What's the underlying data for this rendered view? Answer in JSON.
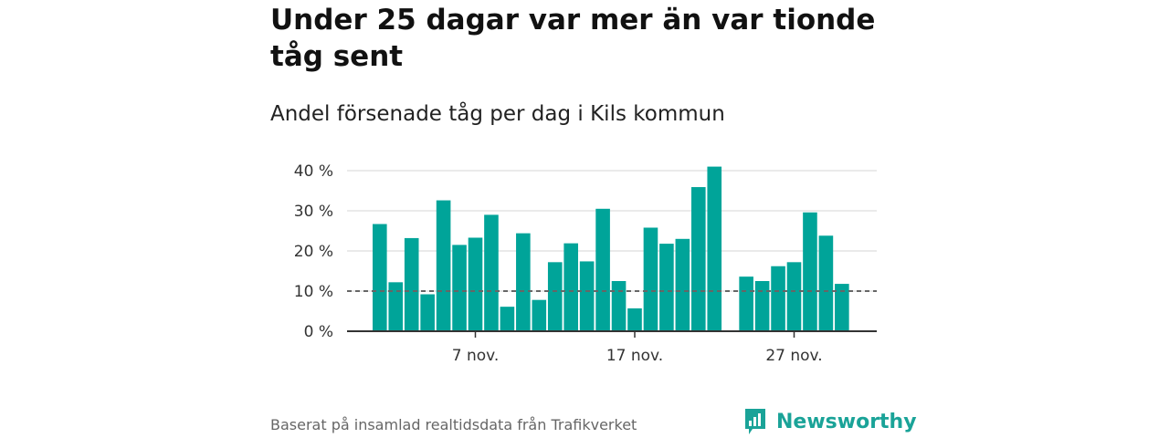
{
  "headline": "Under 25 dagar var mer än var tionde tåg sent",
  "subtitle": "Andel försenade tåg per dag i Kils kommun",
  "footer": {
    "source": "Baserat på insamlad realtidsdata från Trafikverket",
    "brand": "Newsworthy",
    "brand_icon": "newsworthy-logo-icon"
  },
  "colors": {
    "bar": "#00a499",
    "grid": "#dddddd",
    "axis": "#333333",
    "reference_line": "#666666",
    "brand": "#1aa398"
  },
  "chart_data": {
    "type": "bar",
    "x_start": "1 nov.",
    "values": [
      26.7,
      12.2,
      23.2,
      9.2,
      32.6,
      21.5,
      23.3,
      29.0,
      6.1,
      24.4,
      7.8,
      17.2,
      21.9,
      17.4,
      30.5,
      12.5,
      5.7,
      25.8,
      21.8,
      23.0,
      35.9,
      41.0,
      null,
      13.6,
      12.5,
      16.2,
      17.2,
      29.6,
      23.8,
      11.8
    ],
    "ylim": [
      0,
      40
    ],
    "y_ticks": [
      0,
      10,
      20,
      30,
      40
    ],
    "y_tick_labels": [
      "0 %",
      "10 %",
      "20 %",
      "30 %",
      "40 %"
    ],
    "x_ticks": [
      {
        "index": 6,
        "label": "7 nov."
      },
      {
        "index": 16,
        "label": "17 nov."
      },
      {
        "index": 26,
        "label": "27 nov."
      }
    ],
    "reference_line": 10,
    "grid": true,
    "legend": "none"
  }
}
